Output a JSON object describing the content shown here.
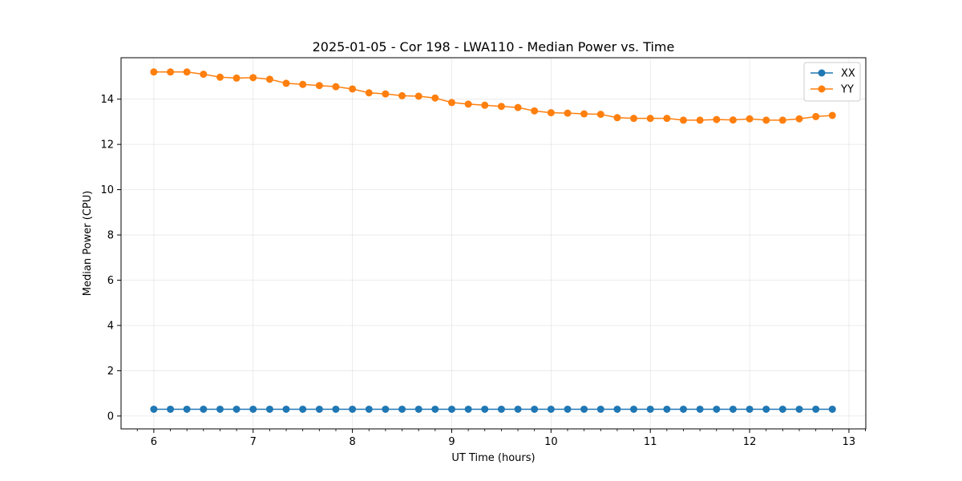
{
  "chart_data": {
    "type": "line",
    "title": "2025-01-05 - Cor 198 - LWA110 - Median Power vs. Time",
    "xlabel": "UT Time (hours)",
    "ylabel": "Median Power (CPU)",
    "xlim": [
      5.67,
      13.17
    ],
    "ylim": [
      -0.57,
      15.83
    ],
    "xticks": [
      6,
      7,
      8,
      9,
      10,
      11,
      12,
      13
    ],
    "xtick_labels": [
      "6",
      "7",
      "8",
      "9",
      "10",
      "11",
      "12",
      "13"
    ],
    "yticks": [
      0,
      2,
      4,
      6,
      8,
      10,
      12,
      14
    ],
    "ytick_labels": [
      "0",
      "2",
      "4",
      "6",
      "8",
      "10",
      "12",
      "14"
    ],
    "grid": true,
    "legend_position": "top-right",
    "x": [
      6.0,
      6.167,
      6.333,
      6.5,
      6.667,
      6.833,
      7.0,
      7.167,
      7.333,
      7.5,
      7.667,
      7.833,
      8.0,
      8.167,
      8.333,
      8.5,
      8.667,
      8.833,
      9.0,
      9.167,
      9.333,
      9.5,
      9.667,
      9.833,
      10.0,
      10.167,
      10.333,
      10.5,
      10.667,
      10.833,
      11.0,
      11.167,
      11.333,
      11.5,
      11.667,
      11.833,
      12.0,
      12.167,
      12.333,
      12.5,
      12.667,
      12.833
    ],
    "series": [
      {
        "name": "XX",
        "color": "#1f77b4",
        "values": [
          0.3,
          0.3,
          0.3,
          0.3,
          0.3,
          0.3,
          0.3,
          0.3,
          0.3,
          0.3,
          0.3,
          0.3,
          0.3,
          0.3,
          0.3,
          0.3,
          0.3,
          0.3,
          0.3,
          0.3,
          0.3,
          0.3,
          0.3,
          0.3,
          0.3,
          0.3,
          0.3,
          0.3,
          0.3,
          0.3,
          0.3,
          0.3,
          0.3,
          0.3,
          0.3,
          0.3,
          0.3,
          0.3,
          0.3,
          0.3,
          0.3,
          0.3
        ]
      },
      {
        "name": "YY",
        "color": "#ff7f0e",
        "values": [
          15.2,
          15.2,
          15.2,
          15.1,
          14.97,
          14.93,
          14.95,
          14.88,
          14.7,
          14.65,
          14.6,
          14.55,
          14.45,
          14.28,
          14.23,
          14.15,
          14.13,
          14.05,
          13.85,
          13.78,
          13.73,
          13.68,
          13.63,
          13.48,
          13.4,
          13.38,
          13.35,
          13.33,
          13.18,
          13.15,
          13.15,
          13.15,
          13.07,
          13.07,
          13.1,
          13.08,
          13.13,
          13.07,
          13.07,
          13.13,
          13.23,
          13.28
        ]
      }
    ]
  }
}
